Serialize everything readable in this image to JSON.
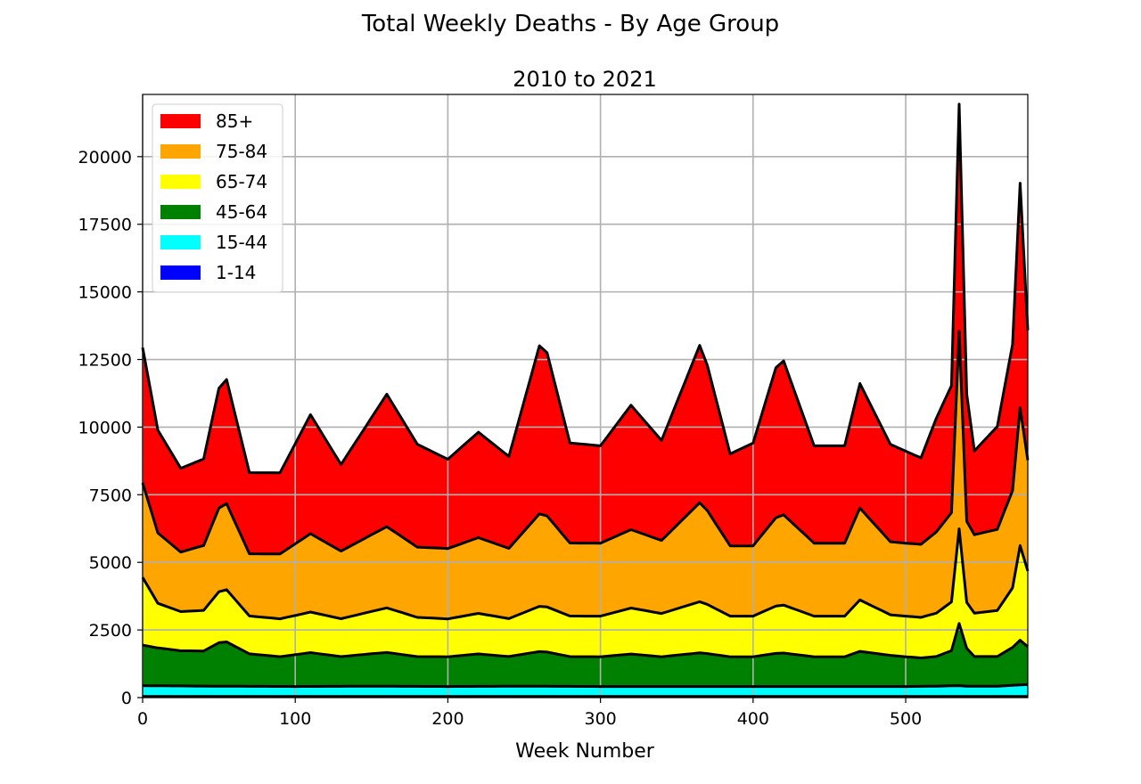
{
  "suptitle": "Total Weekly Deaths - By Age Group",
  "chart_data": {
    "type": "area",
    "stacked": true,
    "title": "2010 to 2021",
    "xlabel": "Week Number",
    "ylabel": "",
    "xlim": [
      0,
      580
    ],
    "ylim": [
      0,
      22300
    ],
    "xticks": [
      0,
      100,
      200,
      300,
      400,
      500
    ],
    "yticks": [
      0,
      2500,
      5000,
      7500,
      10000,
      12500,
      15000,
      17500,
      20000
    ],
    "grid": true,
    "legend_position": "upper-left",
    "series": [
      {
        "name": "1-14",
        "color": "#0000ff",
        "x": [
          0,
          50,
          100,
          150,
          200,
          250,
          300,
          350,
          400,
          450,
          500,
          520,
          535,
          540,
          560,
          575,
          580
        ],
        "values": [
          40,
          40,
          40,
          40,
          40,
          40,
          40,
          40,
          40,
          40,
          40,
          40,
          40,
          40,
          40,
          40,
          40
        ]
      },
      {
        "name": "15-44",
        "color": "#00ffff",
        "x": [
          0,
          50,
          100,
          150,
          200,
          250,
          300,
          350,
          400,
          450,
          500,
          520,
          535,
          540,
          560,
          575,
          580
        ],
        "values": [
          400,
          380,
          370,
          380,
          370,
          380,
          370,
          370,
          370,
          370,
          370,
          380,
          400,
          380,
          380,
          430,
          440
        ]
      },
      {
        "name": "45-64",
        "color": "#008000",
        "x": [
          0,
          10,
          25,
          40,
          53,
          70,
          90,
          110,
          130,
          160,
          180,
          200,
          220,
          240,
          262,
          280,
          300,
          320,
          340,
          366,
          385,
          400,
          418,
          440,
          460,
          470,
          490,
          510,
          520,
          530,
          535,
          540,
          545,
          560,
          570,
          575,
          580
        ],
        "values": [
          1500,
          1400,
          1300,
          1300,
          1700,
          1200,
          1100,
          1250,
          1100,
          1250,
          1100,
          1100,
          1200,
          1100,
          1300,
          1100,
          1100,
          1200,
          1100,
          1250,
          1100,
          1100,
          1250,
          1100,
          1100,
          1300,
          1150,
          1050,
          1100,
          1300,
          2300,
          1400,
          1100,
          1100,
          1400,
          1650,
          1400
        ]
      },
      {
        "name": "65-74",
        "color": "#ffff00",
        "x": [
          0,
          10,
          25,
          40,
          53,
          70,
          90,
          110,
          130,
          160,
          180,
          200,
          220,
          240,
          262,
          280,
          300,
          320,
          340,
          366,
          385,
          400,
          418,
          440,
          460,
          470,
          490,
          510,
          520,
          530,
          535,
          540,
          545,
          560,
          570,
          575,
          580
        ],
        "values": [
          2500,
          1650,
          1450,
          1500,
          2000,
          1400,
          1400,
          1500,
          1400,
          1650,
          1450,
          1400,
          1500,
          1400,
          1700,
          1500,
          1500,
          1700,
          1600,
          1900,
          1500,
          1500,
          1800,
          1500,
          1500,
          1900,
          1500,
          1500,
          1600,
          1800,
          3500,
          1700,
          1600,
          1700,
          2200,
          3500,
          2800
        ]
      },
      {
        "name": "75-84",
        "color": "#ffa500",
        "x": [
          0,
          10,
          25,
          40,
          53,
          70,
          90,
          110,
          130,
          160,
          180,
          200,
          220,
          240,
          262,
          280,
          300,
          320,
          340,
          366,
          385,
          400,
          418,
          440,
          460,
          470,
          490,
          510,
          520,
          530,
          535,
          540,
          545,
          560,
          570,
          575,
          580
        ],
        "values": [
          3500,
          2600,
          2200,
          2400,
          3300,
          2300,
          2400,
          2900,
          2500,
          3000,
          2600,
          2600,
          2800,
          2600,
          3500,
          2700,
          2700,
          2900,
          2700,
          3700,
          2600,
          2600,
          3400,
          2700,
          2700,
          3400,
          2700,
          2700,
          3000,
          3300,
          7300,
          3000,
          2900,
          3000,
          3600,
          5100,
          4100
        ]
      },
      {
        "name": "85+",
        "color": "#ff0000",
        "x": [
          0,
          10,
          25,
          40,
          53,
          70,
          90,
          110,
          130,
          160,
          180,
          200,
          220,
          240,
          262,
          280,
          300,
          320,
          340,
          366,
          385,
          400,
          418,
          440,
          460,
          470,
          490,
          510,
          520,
          530,
          535,
          540,
          545,
          560,
          570,
          575,
          580
        ],
        "values": [
          5000,
          3800,
          3100,
          3200,
          4800,
          3000,
          3000,
          4400,
          3200,
          4900,
          3800,
          3300,
          3900,
          3400,
          6500,
          3700,
          3600,
          4600,
          3700,
          5900,
          3400,
          3800,
          5900,
          3600,
          3600,
          4600,
          3600,
          3200,
          4200,
          4700,
          8400,
          4700,
          3100,
          3800,
          5400,
          8300,
          4800
        ]
      }
    ]
  }
}
